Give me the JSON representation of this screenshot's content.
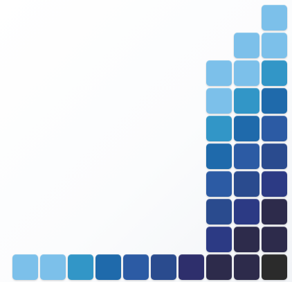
{
  "palette": [
    "#7cc0ea",
    "#3296c7",
    "#1f6aab",
    "#2c5ba4",
    "#2a4b8e",
    "#2c3a84",
    "#2e2f6c",
    "#2d2b4b",
    "#2b2b2b"
  ],
  "tile_grid": {
    "columns": 10,
    "rows": 10,
    "cells": [
      [
        9,
        0,
        0
      ],
      [
        8,
        1,
        0
      ],
      [
        9,
        1,
        0
      ],
      [
        7,
        2,
        0
      ],
      [
        8,
        2,
        0
      ],
      [
        9,
        2,
        1
      ],
      [
        7,
        3,
        0
      ],
      [
        8,
        3,
        1
      ],
      [
        9,
        3,
        2
      ],
      [
        7,
        4,
        1
      ],
      [
        8,
        4,
        2
      ],
      [
        9,
        4,
        3
      ],
      [
        7,
        5,
        2
      ],
      [
        8,
        5,
        3
      ],
      [
        9,
        5,
        4
      ],
      [
        7,
        6,
        3
      ],
      [
        8,
        6,
        4
      ],
      [
        9,
        6,
        5
      ],
      [
        7,
        7,
        4
      ],
      [
        8,
        7,
        5
      ],
      [
        9,
        7,
        7
      ],
      [
        7,
        8,
        5
      ],
      [
        8,
        8,
        7
      ],
      [
        9,
        8,
        7
      ],
      [
        0,
        9,
        0
      ],
      [
        1,
        9,
        0
      ],
      [
        2,
        9,
        1
      ],
      [
        3,
        9,
        2
      ],
      [
        4,
        9,
        3
      ],
      [
        5,
        9,
        4
      ],
      [
        6,
        9,
        6
      ],
      [
        7,
        9,
        7
      ],
      [
        8,
        9,
        7
      ],
      [
        9,
        9,
        8
      ]
    ]
  }
}
